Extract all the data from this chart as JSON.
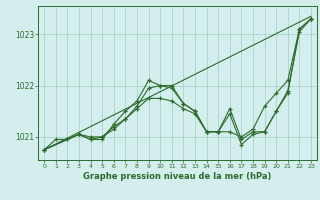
{
  "background_color": "#d4eeed",
  "grid_color": "#a8d5c8",
  "line_color": "#2d6b2d",
  "title": "Graphe pression niveau de la mer (hPa)",
  "xlim": [
    -0.5,
    23.5
  ],
  "ylim": [
    1020.55,
    1023.55
  ],
  "yticks": [
    1021,
    1022,
    1023
  ],
  "xticks": [
    0,
    1,
    2,
    3,
    4,
    5,
    6,
    7,
    8,
    9,
    10,
    11,
    12,
    13,
    14,
    15,
    16,
    17,
    18,
    19,
    20,
    21,
    22,
    23
  ],
  "series": [
    {
      "x": [
        0,
        23
      ],
      "y": [
        1020.75,
        1023.35
      ],
      "marker": false
    },
    {
      "x": [
        0,
        1,
        2,
        3,
        4,
        5,
        6,
        7,
        8,
        9,
        10,
        11,
        12,
        13,
        14,
        15,
        16,
        17,
        18,
        19,
        20,
        21,
        22,
        23
      ],
      "y": [
        1020.75,
        1020.95,
        1020.95,
        1021.05,
        1020.95,
        1021.0,
        1021.15,
        1021.35,
        1021.6,
        1021.95,
        1022.0,
        1021.95,
        1021.65,
        1021.5,
        1021.1,
        1021.1,
        1021.1,
        1021.0,
        1021.15,
        1021.6,
        1021.85,
        1022.1,
        1023.1,
        1023.3
      ],
      "marker": true
    },
    {
      "x": [
        0,
        3,
        4,
        5,
        6,
        7,
        8,
        9,
        10,
        11,
        12,
        13,
        14,
        15,
        16,
        17,
        18,
        19,
        20,
        21,
        22,
        23
      ],
      "y": [
        1020.75,
        1021.05,
        1020.95,
        1020.95,
        1021.25,
        1021.5,
        1021.7,
        1022.1,
        1022.0,
        1022.0,
        1021.65,
        1021.5,
        1021.1,
        1021.1,
        1021.55,
        1020.95,
        1021.1,
        1021.1,
        1021.5,
        1021.9,
        1023.05,
        1023.3
      ],
      "marker": true
    },
    {
      "x": [
        0,
        3,
        4,
        5,
        6,
        7,
        8,
        9,
        10,
        11,
        12,
        13,
        14,
        15,
        16,
        17,
        18,
        19,
        20,
        21,
        22,
        23
      ],
      "y": [
        1020.75,
        1021.05,
        1021.0,
        1021.0,
        1021.2,
        1021.35,
        1021.55,
        1021.75,
        1021.75,
        1021.7,
        1021.55,
        1021.45,
        1021.1,
        1021.1,
        1021.45,
        1020.85,
        1021.05,
        1021.1,
        1021.5,
        1021.85,
        1023.1,
        1023.3
      ],
      "marker": true
    }
  ]
}
